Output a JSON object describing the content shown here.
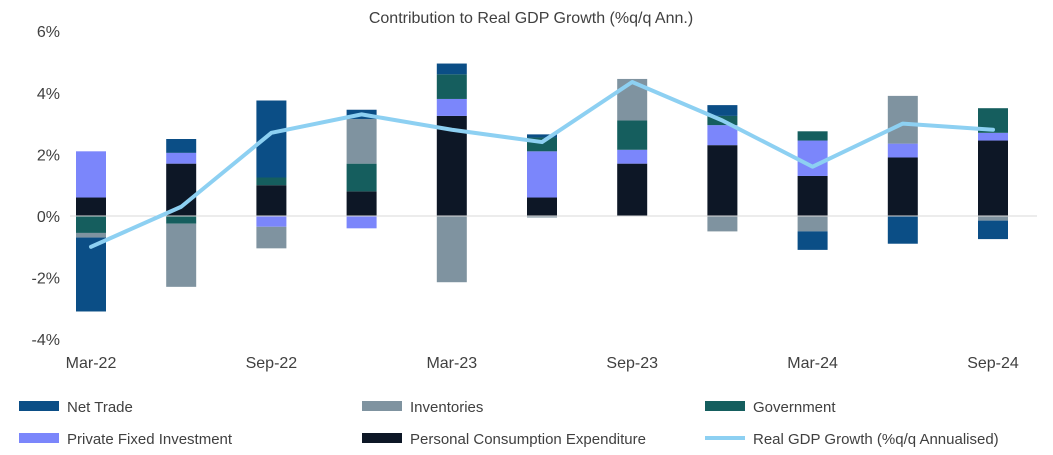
{
  "chart_data": {
    "type": "bar",
    "title": "Contribution to Real GDP Growth (%q/q Ann.)",
    "categories": [
      "Mar-22",
      "Jun-22",
      "Sep-22",
      "Dec-22",
      "Mar-23",
      "Jun-23",
      "Sep-23",
      "Dec-23",
      "Mar-24",
      "Jun-24",
      "Sep-24"
    ],
    "x_tick_labels": [
      "Mar-22",
      "Sep-22",
      "Mar-23",
      "Sep-23",
      "Mar-24",
      "Sep-24"
    ],
    "y_ticks": [
      -4,
      -2,
      0,
      2,
      4,
      6
    ],
    "y_tick_labels": [
      "-4%",
      "-2%",
      "0%",
      "2%",
      "4%",
      "6%"
    ],
    "ylim": [
      -4,
      6
    ],
    "stacked": true,
    "grid": false,
    "legend_position": "bottom",
    "series": [
      {
        "name": "Personal Consumption Expenditure",
        "color": "#0d1726",
        "kind": "bar",
        "values": [
          0.6,
          1.7,
          1.0,
          0.8,
          3.25,
          0.6,
          1.7,
          2.3,
          1.3,
          1.9,
          2.45
        ]
      },
      {
        "name": "Private Fixed Investment",
        "color": "#7b86fb",
        "kind": "bar",
        "values": [
          1.5,
          0.35,
          -0.35,
          -0.4,
          0.55,
          1.5,
          0.45,
          0.65,
          1.15,
          0.45,
          0.25
        ]
      },
      {
        "name": "Government",
        "color": "#155e5e",
        "kind": "bar",
        "values": [
          -0.55,
          -0.25,
          0.25,
          0.9,
          0.8,
          0.45,
          0.95,
          0.3,
          0.3,
          0.0,
          0.8
        ]
      },
      {
        "name": "Inventories",
        "color": "#7f93a0",
        "kind": "bar",
        "values": [
          -0.15,
          -2.05,
          -0.7,
          1.45,
          -2.15,
          -0.05,
          1.35,
          -0.5,
          -0.5,
          1.55,
          -0.15
        ]
      },
      {
        "name": "Net Trade",
        "color": "#0b4e86",
        "kind": "bar",
        "values": [
          -2.4,
          0.45,
          2.5,
          0.3,
          0.35,
          0.1,
          0.0,
          0.35,
          -0.6,
          -0.9,
          -0.6
        ]
      },
      {
        "name": "Real GDP Growth (%q/q Annualised)",
        "color": "#8dd0f2",
        "kind": "line",
        "values": [
          -1.0,
          0.3,
          2.7,
          3.3,
          2.8,
          2.4,
          4.35,
          3.1,
          1.6,
          3.0,
          2.8
        ]
      }
    ],
    "legend": [
      {
        "name": "Net Trade",
        "color": "#0b4e86",
        "kind": "bar"
      },
      {
        "name": "Inventories",
        "color": "#7f93a0",
        "kind": "bar"
      },
      {
        "name": "Government",
        "color": "#155e5e",
        "kind": "bar"
      },
      {
        "name": "Private Fixed Investment",
        "color": "#7b86fb",
        "kind": "bar"
      },
      {
        "name": "Personal Consumption Expenditure",
        "color": "#0d1726",
        "kind": "bar"
      },
      {
        "name": "Real GDP Growth (%q/q Annualised)",
        "color": "#8dd0f2",
        "kind": "line"
      }
    ]
  }
}
